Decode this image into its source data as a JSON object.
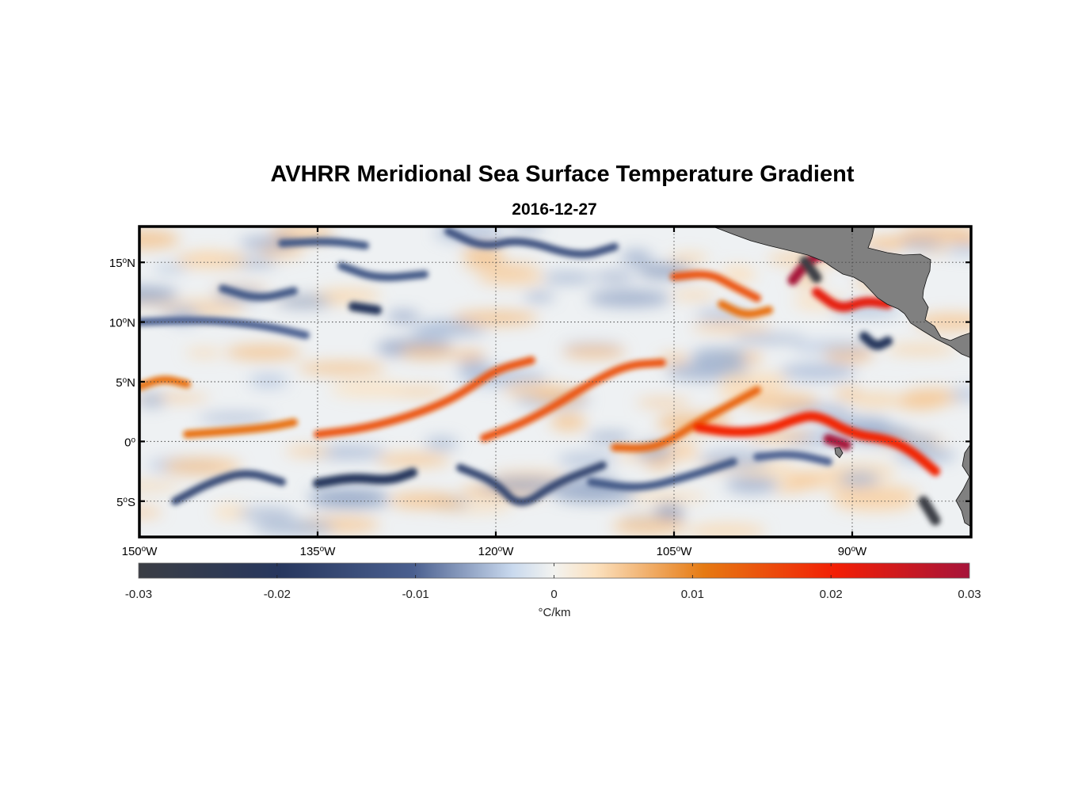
{
  "title": "AVHRR Meridional Sea Surface Temperature Gradient",
  "subtitle": "2016-12-27",
  "map": {
    "lon_range": [
      -150,
      -80
    ],
    "lat_range": [
      -8,
      18
    ],
    "lon_ticks": [
      {
        "value": -150,
        "label_num": "150",
        "label_hem": "W"
      },
      {
        "value": -135,
        "label_num": "135",
        "label_hem": "W"
      },
      {
        "value": -120,
        "label_num": "120",
        "label_hem": "W"
      },
      {
        "value": -105,
        "label_num": "105",
        "label_hem": "W"
      },
      {
        "value": -90,
        "label_num": "90",
        "label_hem": "W"
      }
    ],
    "lat_ticks": [
      {
        "value": 15,
        "label_num": "15",
        "label_hem": "N"
      },
      {
        "value": 10,
        "label_num": "10",
        "label_hem": "N"
      },
      {
        "value": 5,
        "label_num": "5",
        "label_hem": "N"
      },
      {
        "value": 0,
        "label_num": "0",
        "label_hem": ""
      },
      {
        "value": -5,
        "label_num": "5",
        "label_hem": "S"
      }
    ],
    "grid": true,
    "land_color": "#808080"
  },
  "colorbar": {
    "min": -0.03,
    "max": 0.03,
    "ticks": [
      "-0.03",
      "-0.02",
      "-0.01",
      "0",
      "0.01",
      "0.02",
      "0.03"
    ],
    "unit_label": "°C/km",
    "colors": [
      "#3a3d44",
      "#27375e",
      "#4a5f8f",
      "#c9d9ee",
      "#f3f3f0",
      "#fbe1bf",
      "#e67a12",
      "#f21e05",
      "#a6143a"
    ]
  },
  "chart_data": {
    "type": "heatmap",
    "title": "AVHRR Meridional Sea Surface Temperature Gradient",
    "subtitle": "2016-12-27",
    "xlabel": "",
    "ylabel": "",
    "xlim": [
      -150,
      -80
    ],
    "ylim": [
      -8,
      18
    ],
    "zlim": [
      -0.03,
      0.03
    ],
    "z_unit": "°C/km",
    "features": [
      {
        "kind": "positive band",
        "points": [
          [
            -150,
            4.6
          ],
          [
            -148,
            5.3
          ],
          [
            -146,
            4.8
          ]
        ],
        "value": 0.012
      },
      {
        "kind": "positive band",
        "points": [
          [
            -146,
            0.6
          ],
          [
            -142,
            0.9
          ],
          [
            -139,
            1.2
          ],
          [
            -137,
            1.6
          ]
        ],
        "value": 0.012
      },
      {
        "kind": "positive band",
        "points": [
          [
            -135,
            0.6
          ],
          [
            -131,
            1.1
          ],
          [
            -127,
            2.2
          ],
          [
            -124,
            3.4
          ],
          [
            -122,
            4.6
          ],
          [
            -120,
            6.0
          ],
          [
            -117,
            6.8
          ]
        ],
        "value": 0.015
      },
      {
        "kind": "positive band",
        "points": [
          [
            -121,
            0.3
          ],
          [
            -118,
            1.4
          ],
          [
            -115,
            3.0
          ],
          [
            -112,
            4.9
          ],
          [
            -109,
            6.4
          ],
          [
            -106,
            6.6
          ]
        ],
        "value": 0.015
      },
      {
        "kind": "positive band",
        "points": [
          [
            -110,
            -0.5
          ],
          [
            -107,
            -0.6
          ],
          [
            -105,
            0.3
          ],
          [
            -103,
            1.6
          ],
          [
            -100,
            3.2
          ],
          [
            -98,
            4.3
          ]
        ],
        "value": 0.013
      },
      {
        "kind": "positive band",
        "points": [
          [
            -103,
            1.2
          ],
          [
            -100,
            0.7
          ],
          [
            -97,
            1.0
          ],
          [
            -95,
            1.8
          ],
          [
            -93,
            2.3
          ],
          [
            -90,
            0.6
          ],
          [
            -87,
            0.2
          ],
          [
            -85,
            -0.8
          ],
          [
            -83,
            -2.5
          ]
        ],
        "value": 0.02
      },
      {
        "kind": "positive band",
        "points": [
          [
            -105,
            13.8
          ],
          [
            -102,
            14.1
          ],
          [
            -100,
            13.0
          ],
          [
            -98,
            12.0
          ]
        ],
        "value": 0.015
      },
      {
        "kind": "positive band",
        "points": [
          [
            -101,
            11.5
          ],
          [
            -99,
            10.5
          ],
          [
            -97,
            11.0
          ]
        ],
        "value": 0.012
      },
      {
        "kind": "positive band",
        "points": [
          [
            -93,
            12.5
          ],
          [
            -91,
            11.0
          ],
          [
            -89,
            11.8
          ],
          [
            -87,
            11.5
          ]
        ],
        "value": 0.022
      },
      {
        "kind": "positive band",
        "points": [
          [
            -95,
            13.5
          ],
          [
            -93.5,
            15.4
          ],
          [
            -91.5,
            15.9
          ]
        ],
        "value": 0.03
      },
      {
        "kind": "positive band",
        "points": [
          [
            -92,
            0.2
          ],
          [
            -90.5,
            -0.3
          ]
        ],
        "value": 0.03
      },
      {
        "kind": "negative band",
        "points": [
          [
            -143,
            12.8
          ],
          [
            -140,
            11.9
          ],
          [
            -137,
            12.6
          ]
        ],
        "value": -0.012
      },
      {
        "kind": "negative band",
        "points": [
          [
            -133,
            14.7
          ],
          [
            -130,
            13.6
          ],
          [
            -126,
            14.0
          ]
        ],
        "value": -0.012
      },
      {
        "kind": "negative band",
        "points": [
          [
            -138,
            16.6
          ],
          [
            -134,
            16.8
          ],
          [
            -131,
            16.4
          ]
        ],
        "value": -0.012
      },
      {
        "kind": "negative band",
        "points": [
          [
            -150,
            10.0
          ],
          [
            -145,
            10.2
          ],
          [
            -140,
            9.8
          ],
          [
            -136,
            8.9
          ]
        ],
        "value": -0.01
      },
      {
        "kind": "negative band",
        "points": [
          [
            -132,
            11.3
          ],
          [
            -130,
            11.0
          ]
        ],
        "value": -0.02
      },
      {
        "kind": "negative band",
        "points": [
          [
            -124,
            17.6
          ],
          [
            -121,
            16.2
          ],
          [
            -118,
            17.0
          ],
          [
            -113,
            15.4
          ],
          [
            -110,
            16.3
          ]
        ],
        "value": -0.013
      },
      {
        "kind": "negative band",
        "points": [
          [
            -147,
            -5.0
          ],
          [
            -144,
            -3.4
          ],
          [
            -141,
            -2.5
          ],
          [
            -138,
            -3.4
          ]
        ],
        "value": -0.015
      },
      {
        "kind": "negative band",
        "points": [
          [
            -135,
            -3.5
          ],
          [
            -132,
            -3.0
          ],
          [
            -129,
            -3.3
          ],
          [
            -127,
            -2.6
          ]
        ],
        "value": -0.02
      },
      {
        "kind": "negative band",
        "points": [
          [
            -123,
            -2.2
          ],
          [
            -120,
            -3.4
          ],
          [
            -118,
            -5.6
          ],
          [
            -115,
            -3.5
          ],
          [
            -111,
            -2.0
          ]
        ],
        "value": -0.016
      },
      {
        "kind": "negative band",
        "points": [
          [
            -112,
            -3.4
          ],
          [
            -108,
            -4.0
          ],
          [
            -104,
            -3.0
          ],
          [
            -100,
            -1.7
          ]
        ],
        "value": -0.012
      },
      {
        "kind": "negative band",
        "points": [
          [
            -98,
            -1.3
          ],
          [
            -95,
            -1.0
          ],
          [
            -92,
            -1.7
          ]
        ],
        "value": -0.01
      },
      {
        "kind": "negative band",
        "points": [
          [
            -89,
            8.8
          ],
          [
            -88,
            7.9
          ],
          [
            -87,
            8.4
          ]
        ],
        "value": -0.02
      },
      {
        "kind": "negative band",
        "points": [
          [
            -94,
            15.1
          ],
          [
            -93,
            13.7
          ]
        ],
        "value": -0.03
      },
      {
        "kind": "negative band",
        "points": [
          [
            -84,
            -5.0
          ],
          [
            -83,
            -6.6
          ]
        ],
        "value": -0.03
      }
    ]
  }
}
